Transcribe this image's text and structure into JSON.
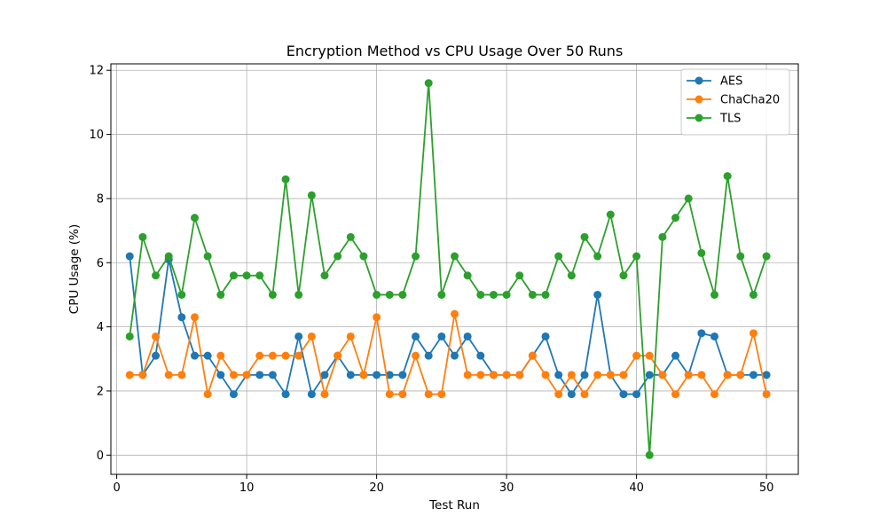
{
  "chart_data": {
    "type": "line",
    "title": "Encryption Method vs CPU Usage Over 50 Runs",
    "xlabel": "Test Run",
    "ylabel": "CPU Usage (%)",
    "xlim": [
      -0.45,
      52.45
    ],
    "ylim": [
      -0.6,
      12.2
    ],
    "xticks": [
      0,
      10,
      20,
      30,
      40,
      50
    ],
    "yticks": [
      0,
      2,
      4,
      6,
      8,
      10,
      12
    ],
    "grid": true,
    "legend_position": "top-right",
    "x": [
      1,
      2,
      3,
      4,
      5,
      6,
      7,
      8,
      9,
      10,
      11,
      12,
      13,
      14,
      15,
      16,
      17,
      18,
      19,
      20,
      21,
      22,
      23,
      24,
      25,
      26,
      27,
      28,
      29,
      30,
      31,
      32,
      33,
      34,
      35,
      36,
      37,
      38,
      39,
      40,
      41,
      42,
      43,
      44,
      45,
      46,
      47,
      48,
      49,
      50
    ],
    "series": [
      {
        "name": "AES",
        "color": "#1f77b4",
        "values": [
          6.2,
          2.5,
          3.1,
          6.1,
          4.3,
          3.1,
          3.1,
          2.5,
          1.9,
          2.5,
          2.5,
          2.5,
          1.9,
          3.7,
          1.9,
          2.5,
          3.1,
          2.5,
          2.5,
          2.5,
          2.5,
          2.5,
          3.7,
          3.1,
          3.7,
          3.1,
          3.7,
          3.1,
          2.5,
          2.5,
          2.5,
          3.1,
          3.7,
          2.5,
          1.9,
          2.5,
          5.0,
          2.5,
          1.9,
          1.9,
          2.5,
          2.5,
          3.1,
          2.5,
          3.8,
          3.7,
          2.5,
          2.5,
          2.5,
          2.5
        ]
      },
      {
        "name": "ChaCha20",
        "color": "#ff7f0e",
        "values": [
          2.5,
          2.5,
          3.7,
          2.5,
          2.5,
          4.3,
          1.9,
          3.1,
          2.5,
          2.5,
          3.1,
          3.1,
          3.1,
          3.1,
          3.7,
          1.9,
          3.1,
          3.7,
          2.5,
          4.3,
          1.9,
          1.9,
          3.1,
          1.9,
          1.9,
          4.4,
          2.5,
          2.5,
          2.5,
          2.5,
          2.5,
          3.1,
          2.5,
          1.9,
          2.5,
          1.9,
          2.5,
          2.5,
          2.5,
          3.1,
          3.1,
          2.5,
          1.9,
          2.5,
          2.5,
          1.9,
          2.5,
          2.5,
          3.8,
          1.9
        ]
      },
      {
        "name": "TLS",
        "color": "#2ca02c",
        "values": [
          3.7,
          6.8,
          5.6,
          6.2,
          5.0,
          7.4,
          6.2,
          5.0,
          5.6,
          5.6,
          5.6,
          5.0,
          8.6,
          5.0,
          8.1,
          5.6,
          6.2,
          6.8,
          6.2,
          5.0,
          5.0,
          5.0,
          6.2,
          11.6,
          5.0,
          6.2,
          5.6,
          5.0,
          5.0,
          5.0,
          5.6,
          5.0,
          5.0,
          6.2,
          5.6,
          6.8,
          6.2,
          7.5,
          5.6,
          6.2,
          0.0,
          6.8,
          7.4,
          8.0,
          6.3,
          5.0,
          8.7,
          6.2,
          5.0,
          6.2
        ]
      }
    ]
  }
}
